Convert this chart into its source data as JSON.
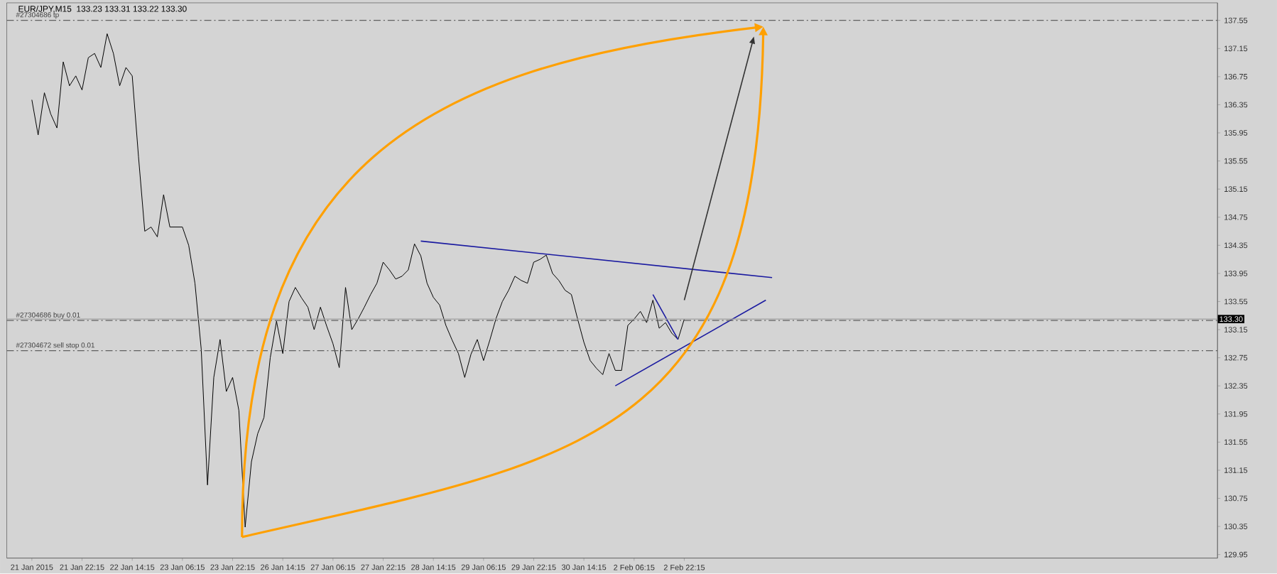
{
  "chart_data": {
    "type": "line",
    "title": "EUR/JPY,M15",
    "subtitle": "133.23 133.31 133.22 133.30",
    "categories": [
      "21 Jan 2015",
      null,
      null,
      null,
      null,
      null,
      null,
      null,
      "21 Jan 22:15",
      null,
      null,
      null,
      null,
      null,
      null,
      null,
      "22 Jan 14:15",
      null,
      null,
      null,
      null,
      null,
      null,
      null,
      "23 Jan 06:15",
      null,
      null,
      null,
      null,
      null,
      null,
      null,
      "23 Jan 22:15",
      null,
      null,
      null,
      null,
      null,
      null,
      null,
      "26 Jan 14:15",
      null,
      null,
      null,
      null,
      null,
      null,
      null,
      "27 Jan 06:15",
      null,
      null,
      null,
      null,
      null,
      null,
      null,
      "27 Jan 22:15",
      null,
      null,
      null,
      null,
      null,
      null,
      null,
      "28 Jan 14:15",
      null,
      null,
      null,
      null,
      null,
      null,
      null,
      "29 Jan 06:15",
      null,
      null,
      null,
      null,
      null,
      null,
      null,
      "29 Jan 22:15",
      null,
      null,
      null,
      null,
      null,
      null,
      null,
      "30 Jan 14:15",
      null,
      null,
      null,
      null,
      null,
      null,
      null,
      "2 Feb 06:15",
      null,
      null,
      null,
      null,
      null,
      null,
      null,
      "2 Feb 22:15",
      null,
      null,
      null,
      null,
      null,
      null,
      null,
      null,
      null,
      null,
      null,
      null,
      null,
      null,
      null,
      null,
      null,
      null,
      null,
      null,
      null,
      null,
      null,
      null,
      null,
      null,
      null,
      null,
      null,
      null,
      null,
      null,
      null,
      null,
      null,
      null,
      null,
      null,
      null,
      null,
      null,
      null,
      null,
      null,
      null,
      null,
      null,
      null,
      null,
      null,
      null,
      null,
      null,
      null,
      null,
      null,
      null,
      null,
      null,
      null,
      null,
      null,
      null,
      null,
      null,
      null,
      null,
      null,
      null,
      null,
      null,
      null,
      null,
      null,
      null,
      null,
      null,
      null,
      null,
      null,
      null,
      null,
      null,
      null,
      null
    ],
    "ylim": [
      129.9,
      137.8
    ],
    "yticks": [
      129.95,
      130.35,
      130.75,
      131.15,
      131.55,
      131.95,
      132.35,
      132.75,
      133.15,
      133.55,
      133.95,
      134.35,
      134.75,
      135.15,
      135.55,
      135.95,
      136.35,
      136.75,
      137.15,
      137.55
    ],
    "series": [
      {
        "color": "#000000",
        "values": [
          136.42,
          135.92,
          136.52,
          136.22,
          136.02,
          136.96,
          136.62,
          136.76,
          136.56,
          137.02,
          137.08,
          136.88,
          137.36,
          137.08,
          136.62,
          136.88,
          136.76,
          135.61,
          134.55,
          134.61,
          134.47,
          135.07,
          134.61,
          134.61,
          134.61,
          134.35,
          133.81,
          132.87,
          130.94,
          132.47,
          133.01,
          132.27,
          132.47,
          132.0,
          130.34,
          131.27,
          131.67,
          131.9,
          132.75,
          133.27,
          132.81,
          133.55,
          133.75,
          133.6,
          133.47,
          133.15,
          133.47,
          133.2,
          132.95,
          132.61,
          133.75,
          133.15,
          133.3,
          133.47,
          133.65,
          133.81,
          134.11,
          134.0,
          133.87,
          133.91,
          134.0,
          134.37,
          134.2,
          133.81,
          133.61,
          133.5,
          133.21,
          133.0,
          132.81,
          132.47,
          132.8,
          133.01,
          132.71,
          133.0,
          133.31,
          133.55,
          133.71,
          133.91,
          133.85,
          133.81,
          134.11,
          134.15,
          134.21,
          133.95,
          133.85,
          133.71,
          133.65,
          133.3,
          132.97,
          132.71,
          132.6,
          132.51,
          132.81,
          132.57,
          132.57,
          133.21,
          133.3,
          133.41,
          133.25,
          133.57,
          133.17,
          133.25,
          133.1,
          133.01,
          133.3,
          null,
          null,
          null,
          null,
          null,
          null,
          null,
          null,
          null,
          null,
          null,
          null,
          null,
          null,
          null,
          null,
          null,
          null,
          null,
          null,
          null,
          null,
          null,
          null,
          null,
          null,
          null,
          null,
          null,
          null,
          null,
          null,
          null,
          null,
          null,
          null,
          null,
          null,
          null,
          null,
          null,
          null,
          null,
          null,
          null,
          null,
          null,
          null,
          null,
          null,
          null,
          null,
          null,
          null,
          null,
          null,
          null,
          null,
          null,
          null,
          null,
          null,
          null,
          null,
          null,
          null,
          null,
          null,
          null,
          null,
          null,
          null,
          null,
          null,
          null,
          null,
          null,
          null,
          null,
          null,
          null,
          null,
          null,
          null,
          null
        ]
      },
      {
        "color": "#1a1aa0",
        "values": [
          null,
          null,
          null,
          null,
          null,
          null,
          null,
          null,
          null,
          null,
          null,
          null,
          null,
          null,
          null,
          null,
          null,
          null,
          null,
          null,
          null,
          null,
          null,
          null,
          null,
          null,
          null,
          null,
          null,
          null,
          null,
          null,
          null,
          null,
          null,
          null,
          null,
          null,
          null,
          null,
          null,
          null,
          null,
          null,
          null,
          null,
          null,
          null,
          null,
          null,
          null,
          null,
          null,
          null,
          null,
          null,
          null,
          null,
          null,
          null,
          null,
          null,
          134.41,
          null,
          null,
          null,
          null,
          null,
          null,
          null,
          null,
          null,
          null,
          null,
          null,
          null,
          null,
          null,
          null,
          null,
          null,
          null,
          null,
          null,
          null,
          null,
          null,
          null,
          null,
          null,
          null,
          null,
          null,
          null,
          null,
          null,
          null,
          null,
          null,
          null,
          null,
          null,
          null,
          null,
          null,
          null,
          null,
          null,
          null,
          null,
          null,
          null,
          null,
          null,
          null,
          null,
          null,
          null,
          133.89,
          null,
          null,
          null,
          null,
          null,
          null,
          null,
          null,
          null,
          null,
          null,
          null,
          null,
          null,
          null,
          null,
          null,
          null,
          null,
          null,
          null,
          null,
          null,
          null,
          null,
          null,
          null,
          null,
          null,
          null,
          null,
          null,
          null,
          null,
          null,
          null,
          null,
          null,
          null,
          null,
          null,
          null,
          null,
          null,
          null,
          null,
          null,
          null,
          null,
          null,
          null,
          null,
          null,
          null,
          null,
          null,
          null,
          null,
          null,
          null,
          null,
          null,
          null,
          null,
          null,
          null,
          null,
          null,
          null,
          null,
          null
        ]
      },
      {
        "color": "#1a1aa0",
        "values": [
          null,
          null,
          null,
          null,
          null,
          null,
          null,
          null,
          null,
          null,
          null,
          null,
          null,
          null,
          null,
          null,
          null,
          null,
          null,
          null,
          null,
          null,
          null,
          null,
          null,
          null,
          null,
          null,
          null,
          null,
          null,
          null,
          null,
          null,
          null,
          null,
          null,
          null,
          null,
          null,
          null,
          null,
          null,
          null,
          null,
          null,
          null,
          null,
          null,
          null,
          null,
          null,
          null,
          null,
          null,
          null,
          null,
          null,
          null,
          null,
          null,
          null,
          null,
          null,
          null,
          null,
          null,
          null,
          null,
          null,
          null,
          null,
          null,
          null,
          null,
          null,
          null,
          null,
          null,
          null,
          null,
          null,
          null,
          null,
          null,
          null,
          null,
          null,
          null,
          null,
          null,
          null,
          null,
          132.35,
          null,
          null,
          null,
          null,
          null,
          null,
          null,
          null,
          null,
          null,
          null,
          null,
          null,
          null,
          null,
          null,
          null,
          null,
          null,
          null,
          null,
          null,
          null,
          133.57,
          null,
          null,
          null,
          null,
          null,
          null,
          null,
          null,
          null,
          null,
          null,
          null,
          null,
          null,
          null,
          null,
          null,
          null,
          null,
          null,
          null,
          null,
          null,
          null,
          null,
          null,
          null,
          null,
          null,
          null,
          null,
          null,
          null,
          null,
          null,
          null,
          null,
          null,
          null,
          null,
          null,
          null,
          null,
          null,
          null,
          null,
          null,
          null,
          null,
          null,
          null,
          null,
          null,
          null,
          null,
          null,
          null,
          null,
          null,
          null,
          null,
          null,
          null,
          null,
          null,
          null,
          null,
          null,
          null,
          null,
          null,
          null
        ]
      },
      {
        "color": "#1a1aa0",
        "values": [
          null,
          null,
          null,
          null,
          null,
          null,
          null,
          null,
          null,
          null,
          null,
          null,
          null,
          null,
          null,
          null,
          null,
          null,
          null,
          null,
          null,
          null,
          null,
          null,
          null,
          null,
          null,
          null,
          null,
          null,
          null,
          null,
          null,
          null,
          null,
          null,
          null,
          null,
          null,
          null,
          null,
          null,
          null,
          null,
          null,
          null,
          null,
          null,
          null,
          null,
          null,
          null,
          null,
          null,
          null,
          null,
          null,
          null,
          null,
          null,
          null,
          null,
          null,
          null,
          null,
          null,
          null,
          null,
          null,
          null,
          null,
          null,
          null,
          null,
          null,
          null,
          null,
          null,
          null,
          null,
          null,
          null,
          null,
          null,
          null,
          null,
          null,
          null,
          null,
          null,
          null,
          null,
          null,
          null,
          null,
          null,
          null,
          null,
          null,
          133.65,
          null,
          null,
          null,
          133.01,
          null,
          null,
          null,
          null,
          null,
          null,
          null,
          null,
          null,
          null,
          null,
          null,
          null,
          null,
          null,
          null,
          null,
          null,
          null,
          null,
          null,
          null,
          null,
          null,
          null,
          null,
          null,
          null,
          null,
          null,
          null,
          null,
          null,
          null,
          null,
          null,
          null,
          null,
          null,
          null,
          null,
          null,
          null,
          null,
          null,
          null,
          null,
          null,
          null,
          null,
          null,
          null,
          null,
          null,
          null,
          null,
          null,
          null,
          null,
          null,
          null,
          null,
          null,
          null,
          null,
          null,
          null,
          null,
          null,
          null,
          null,
          null,
          null,
          null,
          null,
          null,
          null,
          null,
          null,
          null,
          null,
          null,
          null,
          null,
          null,
          null
        ]
      }
    ],
    "ref_lines": [
      {
        "axis": "y",
        "value": 137.55,
        "label": "#27304686 tp",
        "color": "#606060",
        "line_style": "dashed"
      },
      {
        "axis": "y",
        "value": 133.3,
        "color": "#a0a0a0",
        "line_style": "solid"
      },
      {
        "axis": "y",
        "value": 133.28,
        "label": "#27304686 buy 0.01",
        "color": "#606060",
        "line_style": "dashed"
      },
      {
        "axis": "y",
        "value": 132.85,
        "label": "#27304672 sell stop 0.01",
        "color": "#606060",
        "line_style": "dashed"
      }
    ],
    "annotations": [
      {
        "text": "133.30",
        "y": 133.3
      }
    ]
  }
}
